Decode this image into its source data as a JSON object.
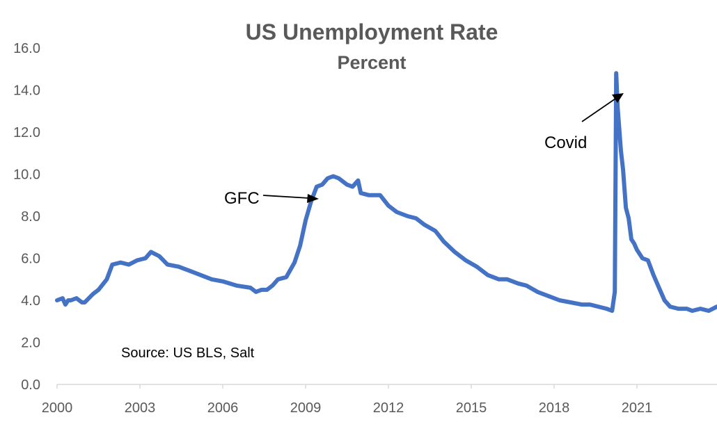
{
  "chart_data": {
    "type": "line",
    "title": "US Unemployment Rate",
    "subtitle": "Percent",
    "xlabel": "",
    "ylabel": "",
    "xlim": [
      2000,
      2023.9
    ],
    "ylim": [
      0,
      16
    ],
    "y_ticks": [
      "0.0",
      "2.0",
      "4.0",
      "6.0",
      "8.0",
      "10.0",
      "12.0",
      "14.0",
      "16.0"
    ],
    "x_ticks": [
      "2000",
      "2003",
      "2006",
      "2009",
      "2012",
      "2015",
      "2018",
      "2021"
    ],
    "grid": false,
    "legend": "none",
    "line_color": "#4472C4",
    "series": [
      {
        "x": [
          2000.0,
          2000.2,
          2000.3,
          2000.4,
          2000.5,
          2000.7,
          2000.9,
          2001.0,
          2001.3,
          2001.5,
          2001.8,
          2002.0,
          2002.3,
          2002.6,
          2002.9,
          2003.2,
          2003.4,
          2003.7,
          2004.0,
          2004.4,
          2004.8,
          2005.2,
          2005.6,
          2006.0,
          2006.5,
          2007.0,
          2007.2,
          2007.4,
          2007.6,
          2007.8,
          2008.0,
          2008.3,
          2008.6,
          2008.8,
          2009.0,
          2009.2,
          2009.4,
          2009.6,
          2009.8,
          2010.0,
          2010.2,
          2010.5,
          2010.7,
          2010.9,
          2011.0,
          2011.3,
          2011.7,
          2012.0,
          2012.3,
          2012.7,
          2013.0,
          2013.3,
          2013.7,
          2014.0,
          2014.4,
          2014.8,
          2015.2,
          2015.6,
          2016.0,
          2016.3,
          2016.7,
          2017.0,
          2017.4,
          2017.8,
          2018.2,
          2018.6,
          2019.0,
          2019.3,
          2019.6,
          2019.9,
          2020.1,
          2020.2,
          2020.25,
          2020.3,
          2020.42,
          2020.5,
          2020.6,
          2020.7,
          2020.8,
          2020.9,
          2021.0,
          2021.2,
          2021.4,
          2021.6,
          2021.8,
          2022.0,
          2022.2,
          2022.5,
          2022.8,
          2023.0,
          2023.3,
          2023.6,
          2023.9
        ],
        "y": [
          4.0,
          4.1,
          3.8,
          4.0,
          4.0,
          4.1,
          3.9,
          3.9,
          4.3,
          4.5,
          5.0,
          5.7,
          5.8,
          5.7,
          5.9,
          6.0,
          6.3,
          6.1,
          5.7,
          5.6,
          5.4,
          5.2,
          5.0,
          4.9,
          4.7,
          4.6,
          4.4,
          4.5,
          4.5,
          4.7,
          5.0,
          5.1,
          5.8,
          6.6,
          7.8,
          8.7,
          9.4,
          9.5,
          9.8,
          9.9,
          9.8,
          9.5,
          9.4,
          9.7,
          9.1,
          9.0,
          9.0,
          8.5,
          8.2,
          8.0,
          7.9,
          7.6,
          7.3,
          6.8,
          6.3,
          5.9,
          5.6,
          5.2,
          5.0,
          5.0,
          4.8,
          4.7,
          4.4,
          4.2,
          4.0,
          3.9,
          3.8,
          3.8,
          3.7,
          3.6,
          3.5,
          4.4,
          14.8,
          13.2,
          11.1,
          10.2,
          8.4,
          7.9,
          6.9,
          6.7,
          6.4,
          6.0,
          5.9,
          5.2,
          4.6,
          4.0,
          3.7,
          3.6,
          3.6,
          3.5,
          3.6,
          3.5,
          3.7
        ]
      }
    ],
    "annotations": [
      {
        "text": "GFC",
        "x": 2009.2
      },
      {
        "text": "Covid",
        "x": 2020.3
      }
    ],
    "source": "Source: US BLS, Salt"
  }
}
